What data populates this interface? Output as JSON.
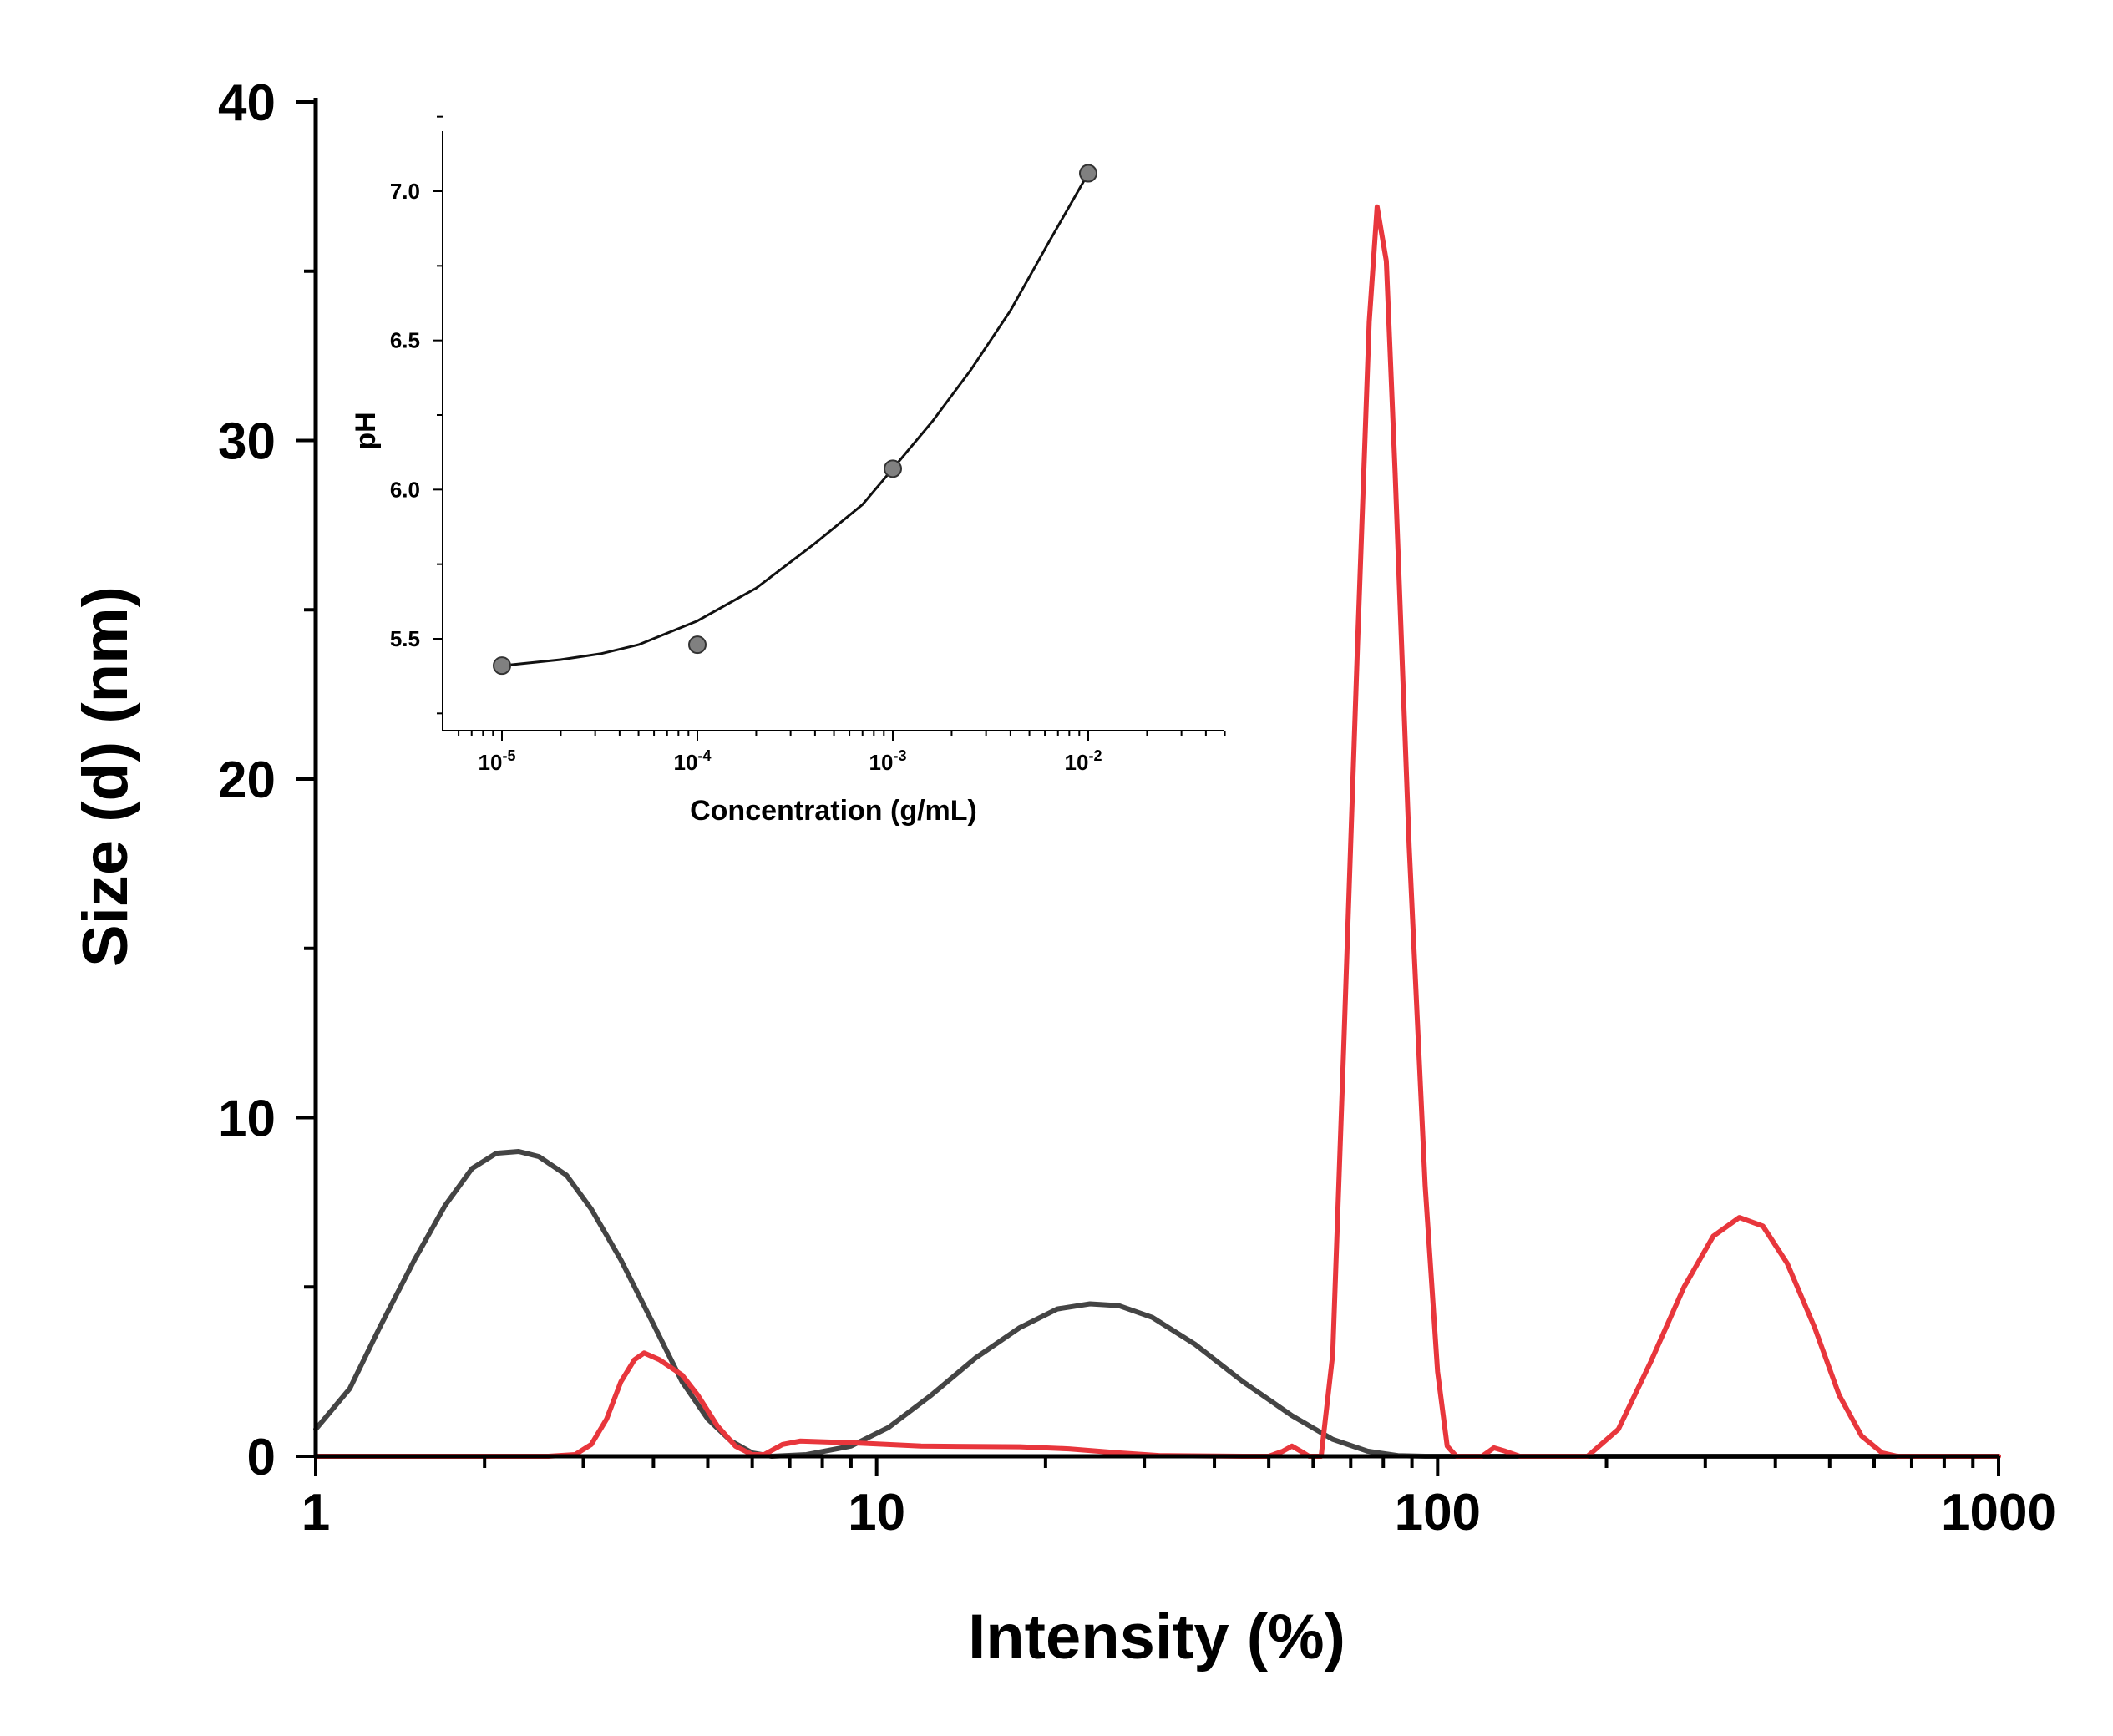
{
  "chart_data": [
    {
      "type": "line",
      "role": "main",
      "title": "",
      "xlabel": "Intensity (%)",
      "ylabel": "Size (d) (nm)",
      "xscale": "log",
      "xlim": [
        1,
        1000
      ],
      "ylim": [
        0,
        40
      ],
      "xticks": [
        1,
        10,
        100,
        1000
      ],
      "xtick_labels": [
        "1",
        "10",
        "100",
        "1000"
      ],
      "yticks": [
        0,
        10,
        20,
        30,
        40
      ],
      "ytick_labels": [
        "0",
        "10",
        "20",
        "30",
        "40"
      ],
      "grid": false,
      "legend": "none",
      "series": [
        {
          "name": "dark-gray",
          "color": "#444444",
          "points": [
            [
              1.0,
              0.8
            ],
            [
              1.15,
              2.0
            ],
            [
              1.3,
              3.8
            ],
            [
              1.5,
              5.8
            ],
            [
              1.7,
              7.4
            ],
            [
              1.9,
              8.5
            ],
            [
              2.1,
              8.95
            ],
            [
              2.3,
              9.0
            ],
            [
              2.5,
              8.85
            ],
            [
              2.8,
              8.3
            ],
            [
              3.1,
              7.3
            ],
            [
              3.5,
              5.8
            ],
            [
              4.0,
              3.9
            ],
            [
              4.5,
              2.2
            ],
            [
              5.0,
              1.1
            ],
            [
              5.5,
              0.45
            ],
            [
              6.0,
              0.1
            ],
            [
              6.5,
              0.0
            ],
            [
              7.5,
              0.05
            ],
            [
              9.0,
              0.3
            ],
            [
              10.5,
              0.85
            ],
            [
              12.5,
              1.8
            ],
            [
              15.0,
              2.9
            ],
            [
              18.0,
              3.8
            ],
            [
              21.0,
              4.35
            ],
            [
              24.0,
              4.5
            ],
            [
              27.0,
              4.45
            ],
            [
              31.0,
              4.1
            ],
            [
              37.0,
              3.3
            ],
            [
              45.0,
              2.2
            ],
            [
              55.0,
              1.2
            ],
            [
              65.0,
              0.5
            ],
            [
              75.0,
              0.15
            ],
            [
              85.0,
              0.02
            ],
            [
              95.0,
              0.0
            ],
            [
              1000.0,
              0.0
            ]
          ]
        },
        {
          "name": "red",
          "color": "#e8363c",
          "points": [
            [
              1.0,
              0.0
            ],
            [
              2.6,
              0.0
            ],
            [
              2.9,
              0.05
            ],
            [
              3.1,
              0.35
            ],
            [
              3.3,
              1.1
            ],
            [
              3.5,
              2.2
            ],
            [
              3.7,
              2.85
            ],
            [
              3.85,
              3.05
            ],
            [
              4.1,
              2.85
            ],
            [
              4.5,
              2.4
            ],
            [
              4.8,
              1.8
            ],
            [
              5.2,
              0.9
            ],
            [
              5.6,
              0.3
            ],
            [
              6.0,
              0.05
            ],
            [
              6.3,
              0.05
            ],
            [
              6.8,
              0.35
            ],
            [
              7.3,
              0.45
            ],
            [
              9.0,
              0.4
            ],
            [
              12.0,
              0.3
            ],
            [
              18.0,
              0.28
            ],
            [
              22.0,
              0.22
            ],
            [
              27.0,
              0.1
            ],
            [
              32.0,
              0.02
            ],
            [
              45.0,
              0.0
            ],
            [
              50.0,
              0.0
            ],
            [
              53.0,
              0.15
            ],
            [
              55.0,
              0.3
            ],
            [
              57.0,
              0.15
            ],
            [
              59.0,
              0.0
            ],
            [
              62.0,
              0.0
            ],
            [
              65.0,
              3.0
            ],
            [
              68.0,
              12.0
            ],
            [
              72.0,
              24.0
            ],
            [
              75.5,
              33.5
            ],
            [
              78.0,
              36.9
            ],
            [
              81.0,
              35.3
            ],
            [
              84.0,
              29.0
            ],
            [
              89.0,
              18.0
            ],
            [
              95.0,
              8.0
            ],
            [
              100.0,
              2.5
            ],
            [
              104.0,
              0.3
            ],
            [
              108.0,
              0.0
            ],
            [
              120.0,
              0.0
            ],
            [
              126.0,
              0.25
            ],
            [
              132.0,
              0.15
            ],
            [
              140.0,
              0.0
            ],
            [
              185.0,
              0.0
            ],
            [
              210.0,
              0.8
            ],
            [
              240.0,
              2.8
            ],
            [
              275.0,
              5.0
            ],
            [
              310.0,
              6.5
            ],
            [
              345.0,
              7.05
            ],
            [
              380.0,
              6.8
            ],
            [
              420.0,
              5.7
            ],
            [
              470.0,
              3.8
            ],
            [
              520.0,
              1.8
            ],
            [
              570.0,
              0.6
            ],
            [
              620.0,
              0.1
            ],
            [
              660.0,
              0.0
            ],
            [
              1000.0,
              0.0
            ]
          ]
        }
      ]
    },
    {
      "type": "scatter",
      "role": "inset",
      "title": "",
      "xlabel": "Concentration (g/mL)",
      "ylabel": "pH",
      "xscale": "log",
      "xlim": [
        5e-06,
        0.05
      ],
      "ylim": [
        5.2,
        7.2
      ],
      "xticks": [
        1e-05,
        0.0001,
        0.001,
        0.01
      ],
      "xtick_labels": [
        {
          "base": "10",
          "exp": "-5"
        },
        {
          "base": "10",
          "exp": "-4"
        },
        {
          "base": "10",
          "exp": "-3"
        },
        {
          "base": "10",
          "exp": "-2"
        }
      ],
      "yticks": [
        5.5,
        6.0,
        6.5,
        7.0
      ],
      "ytick_labels": [
        "5.5",
        "6.0",
        "6.5",
        "7.0"
      ],
      "grid": false,
      "legend": "none",
      "series": [
        {
          "name": "pH points",
          "marker_color": "#808080",
          "x": [
            1e-05,
            0.0001,
            0.001,
            0.01
          ],
          "y": [
            5.41,
            5.48,
            6.07,
            7.06
          ]
        }
      ],
      "fit": {
        "color": "#111111",
        "points": [
          [
            1e-05,
            5.41
          ],
          [
            2e-05,
            5.43
          ],
          [
            3.2e-05,
            5.45
          ],
          [
            5e-05,
            5.48
          ],
          [
            0.0001,
            5.56
          ],
          [
            0.0002,
            5.67
          ],
          [
            0.0004,
            5.82
          ],
          [
            0.0007,
            5.95
          ],
          [
            0.001,
            6.07
          ],
          [
            0.0016,
            6.23
          ],
          [
            0.0025,
            6.4
          ],
          [
            0.004,
            6.6
          ],
          [
            0.0063,
            6.83
          ],
          [
            0.01,
            7.06
          ]
        ]
      }
    }
  ]
}
